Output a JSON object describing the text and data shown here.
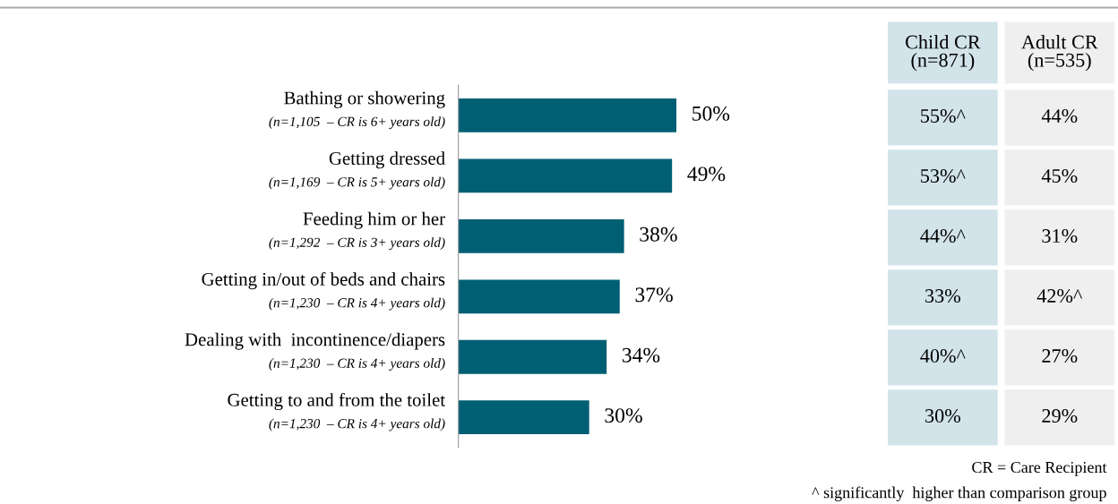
{
  "chart_data": [
    {
      "type": "bar",
      "orientation": "horizontal",
      "categories": [
        "Bathing or showering\n(n=1,105  – CR is 6+ years old)",
        "Getting dressed\n(n=1,169  – CR is 5+ years old)",
        "Feeding him or her\n(n=1,292  – CR is 3+ years old)",
        "Getting in/out of beds and chairs\n(n=1,230  – CR is 4+ years old)",
        "Dealing with  incontinence/diapers\n(n=1,230  – CR is 4+ years old)",
        "Getting to and from the toilet\n(n=1,230  – CR is 4+ years old)"
      ],
      "values": [
        50,
        49,
        38,
        37,
        34,
        30
      ],
      "value_labels": [
        "50%",
        "49%",
        "38%",
        "37%",
        "34%",
        "30%"
      ],
      "color": "#005f73"
    },
    {
      "type": "other",
      "categories": [
        "Child CR\n(n=871)",
        "Adult CR\n(n=535)"
      ],
      "colors": [
        "#d2e3ea",
        "#efefef"
      ],
      "cell_labels": [
        [
          "55%^",
          "44%"
        ],
        [
          "53%^",
          "45%"
        ],
        [
          "44%^",
          "31%"
        ],
        [
          "33%",
          "42%^"
        ],
        [
          "40%^",
          "27%"
        ],
        [
          "30%",
          "29%"
        ]
      ],
      "annotations": [
        "CR = Care Recipient",
        "^ significantly  higher than comparison group"
      ]
    }
  ]
}
